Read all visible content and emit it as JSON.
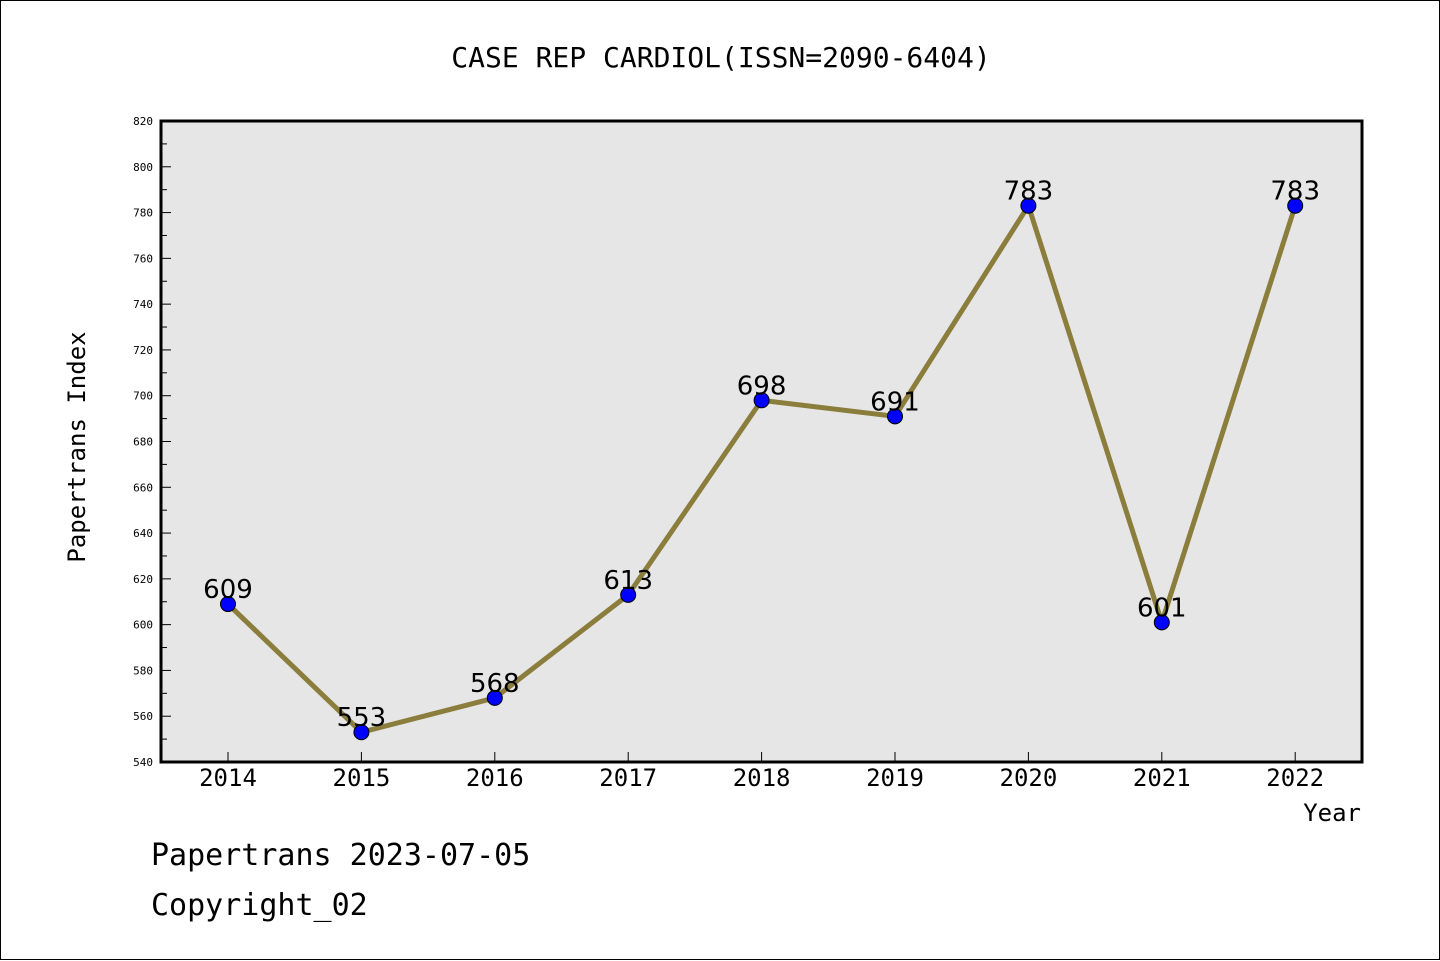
{
  "chart_data": {
    "type": "line",
    "title": "CASE REP CARDIOL(ISSN=2090-6404)",
    "xlabel": "Year",
    "ylabel": "Papertrans Index",
    "categories": [
      "2014",
      "2015",
      "2016",
      "2017",
      "2018",
      "2019",
      "2020",
      "2021",
      "2022"
    ],
    "values": [
      609,
      553,
      568,
      613,
      698,
      691,
      783,
      601,
      783
    ],
    "ylim": [
      540,
      820
    ],
    "yticks": [
      "540",
      "560",
      "580",
      "600",
      "620",
      "640",
      "660",
      "680",
      "700",
      "720",
      "740",
      "760",
      "780",
      "800",
      "820"
    ],
    "grid": false,
    "line_color": "#8b7d3c",
    "marker_color": "#0000ff",
    "plot_background": "#e6e6e6"
  },
  "footer": {
    "line1": "Papertrans 2023-07-05",
    "line2": "Copyright_02"
  }
}
